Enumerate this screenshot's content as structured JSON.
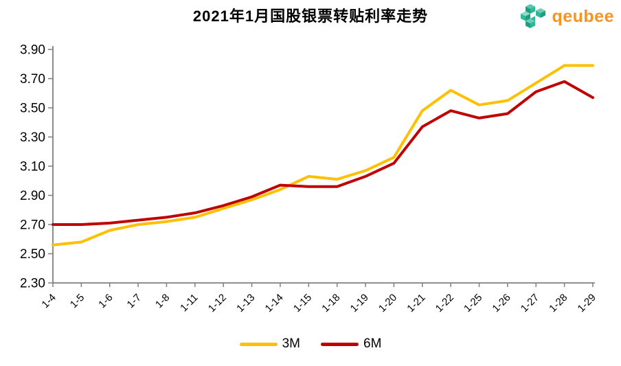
{
  "header": {
    "title": "2021年1月国股银票转贴利率走势",
    "logo_text": "qeubee"
  },
  "colors": {
    "series_3m": "#FFC000",
    "series_6m": "#C00000",
    "axis": "#7F7F7F",
    "tick_label": "#000000",
    "logo_orange": "#F7941E",
    "logo_teal_dark": "#1D9E83",
    "logo_teal_mid": "#2FB79A",
    "logo_teal_light": "#6FCDB6"
  },
  "legend": [
    {
      "label": "3M",
      "color": "#FFC000"
    },
    {
      "label": "6M",
      "color": "#C00000"
    }
  ],
  "chart_data": {
    "type": "line",
    "title": "2021年1月国股银票转贴利率走势",
    "xlabel": "",
    "ylabel": "",
    "grid": false,
    "legend_position": "bottom",
    "ylim": [
      2.3,
      3.9
    ],
    "ytick_step": 0.2,
    "categories": [
      "1-4",
      "1-5",
      "1-6",
      "1-7",
      "1-8",
      "1-11",
      "1-12",
      "1-13",
      "1-14",
      "1-15",
      "1-18",
      "1-19",
      "1-20",
      "1-21",
      "1-22",
      "1-25",
      "1-26",
      "1-27",
      "1-28",
      "1-29"
    ],
    "series": [
      {
        "name": "3M",
        "color": "#FFC000",
        "values": [
          2.56,
          2.58,
          2.66,
          2.7,
          2.72,
          2.75,
          2.81,
          2.87,
          2.94,
          3.03,
          3.01,
          3.07,
          3.16,
          3.48,
          3.62,
          3.52,
          3.55,
          3.67,
          3.79,
          3.79
        ]
      },
      {
        "name": "6M",
        "color": "#C00000",
        "values": [
          2.7,
          2.7,
          2.71,
          2.73,
          2.75,
          2.78,
          2.83,
          2.89,
          2.97,
          2.96,
          2.96,
          3.03,
          3.12,
          3.37,
          3.48,
          3.43,
          3.46,
          3.61,
          3.68,
          3.57
        ]
      }
    ]
  }
}
